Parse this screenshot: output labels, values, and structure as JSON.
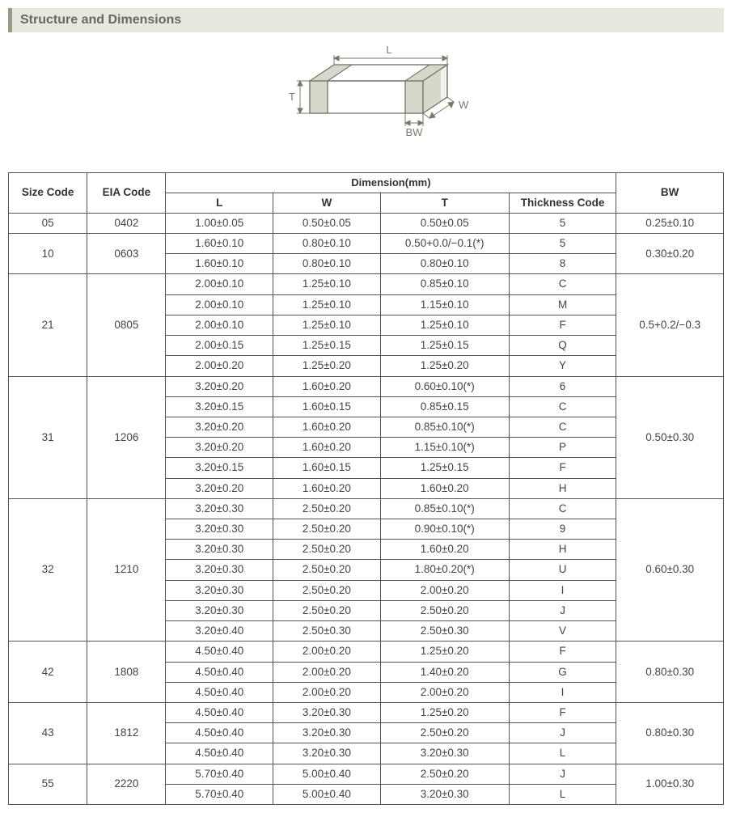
{
  "section_title": "Structure and Dimensions",
  "diagram": {
    "labels": {
      "L": "L",
      "W": "W",
      "T": "T",
      "BW": "BW"
    },
    "stroke": "#7a7a6a",
    "text_color": "#7a7a6a"
  },
  "table": {
    "headers": {
      "size_code": "Size Code",
      "eia_code": "EIA Code",
      "dimension": "Dimension(mm)",
      "L": "L",
      "W": "W",
      "T": "T",
      "thickness_code": "Thickness  Code",
      "BW": "BW"
    },
    "groups": [
      {
        "size": "05",
        "eia": "0402",
        "bw": "0.25±0.10",
        "rows": [
          {
            "L": "1.00±0.05",
            "W": "0.50±0.05",
            "T": "0.50±0.05",
            "th": "5"
          }
        ]
      },
      {
        "size": "10",
        "eia": "0603",
        "bw": "0.30±0.20",
        "rows": [
          {
            "L": "1.60±0.10",
            "W": "0.80±0.10",
            "T": "0.50+0.0/−0.1(*)",
            "th": "5"
          },
          {
            "L": "1.60±0.10",
            "W": "0.80±0.10",
            "T": "0.80±0.10",
            "th": "8"
          }
        ]
      },
      {
        "size": "21",
        "eia": "0805",
        "bw": "0.5+0.2/−0.3",
        "rows": [
          {
            "L": "2.00±0.10",
            "W": "1.25±0.10",
            "T": "0.85±0.10",
            "th": "C"
          },
          {
            "L": "2.00±0.10",
            "W": "1.25±0.10",
            "T": "1.15±0.10",
            "th": "M"
          },
          {
            "L": "2.00±0.10",
            "W": "1.25±0.10",
            "T": "1.25±0.10",
            "th": "F"
          },
          {
            "L": "2.00±0.15",
            "W": "1.25±0.15",
            "T": "1.25±0.15",
            "th": "Q"
          },
          {
            "L": "2.00±0.20",
            "W": "1.25±0.20",
            "T": "1.25±0.20",
            "th": "Y"
          }
        ]
      },
      {
        "size": "31",
        "eia": "1206",
        "bw": "0.50±0.30",
        "rows": [
          {
            "L": "3.20±0.20",
            "W": "1.60±0.20",
            "T": "0.60±0.10(*)",
            "th": "6"
          },
          {
            "L": "3.20±0.15",
            "W": "1.60±0.15",
            "T": "0.85±0.15",
            "th": "C"
          },
          {
            "L": "3.20±0.20",
            "W": "1.60±0.20",
            "T": "0.85±0.10(*)",
            "th": "C"
          },
          {
            "L": "3.20±0.20",
            "W": "1.60±0.20",
            "T": "1.15±0.10(*)",
            "th": "P"
          },
          {
            "L": "3.20±0.15",
            "W": "1.60±0.15",
            "T": "1.25±0.15",
            "th": "F"
          },
          {
            "L": "3.20±0.20",
            "W": "1.60±0.20",
            "T": "1.60±0.20",
            "th": "H"
          }
        ]
      },
      {
        "size": "32",
        "eia": "1210",
        "bw": "0.60±0.30",
        "rows": [
          {
            "L": "3.20±0.30",
            "W": "2.50±0.20",
            "T": "0.85±0.10(*)",
            "th": "C"
          },
          {
            "L": "3.20±0.30",
            "W": "2.50±0.20",
            "T": "0.90±0.10(*)",
            "th": "9"
          },
          {
            "L": "3.20±0.30",
            "W": "2.50±0.20",
            "T": "1.60±0.20",
            "th": "H"
          },
          {
            "L": "3.20±0.30",
            "W": "2.50±0.20",
            "T": "1.80±0.20(*)",
            "th": "U"
          },
          {
            "L": "3.20±0.30",
            "W": "2.50±0.20",
            "T": "2.00±0.20",
            "th": "I"
          },
          {
            "L": "3.20±0.30",
            "W": "2.50±0.20",
            "T": "2.50±0.20",
            "th": "J"
          },
          {
            "L": "3.20±0.40",
            "W": "2.50±0.30",
            "T": "2.50±0.30",
            "th": "V"
          }
        ]
      },
      {
        "size": "42",
        "eia": "1808",
        "bw": "0.80±0.30",
        "rows": [
          {
            "L": "4.50±0.40",
            "W": "2.00±0.20",
            "T": "1.25±0.20",
            "th": "F"
          },
          {
            "L": "4.50±0.40",
            "W": "2.00±0.20",
            "T": "1.40±0.20",
            "th": "G"
          },
          {
            "L": "4.50±0.40",
            "W": "2.00±0.20",
            "T": "2.00±0.20",
            "th": "I"
          }
        ]
      },
      {
        "size": "43",
        "eia": "1812",
        "bw": "0.80±0.30",
        "rows": [
          {
            "L": "4.50±0.40",
            "W": "3.20±0.30",
            "T": "1.25±0.20",
            "th": "F"
          },
          {
            "L": "4.50±0.40",
            "W": "3.20±0.30",
            "T": "2.50±0.20",
            "th": "J"
          },
          {
            "L": "4.50±0.40",
            "W": "3.20±0.30",
            "T": "3.20±0.30",
            "th": "L"
          }
        ]
      },
      {
        "size": "55",
        "eia": "2220",
        "bw": "1.00±0.30",
        "rows": [
          {
            "L": "5.70±0.40",
            "W": "5.00±0.40",
            "T": "2.50±0.20",
            "th": "J"
          },
          {
            "L": "5.70±0.40",
            "W": "5.00±0.40",
            "T": "3.20±0.30",
            "th": "L"
          }
        ]
      }
    ]
  },
  "style": {
    "header_bg": "#e8e8e0",
    "header_border": "#9a9a8a",
    "header_color": "#6a6a5a",
    "table_border": "#555555",
    "font_size_body": 13.5,
    "font_size_title": 16
  }
}
